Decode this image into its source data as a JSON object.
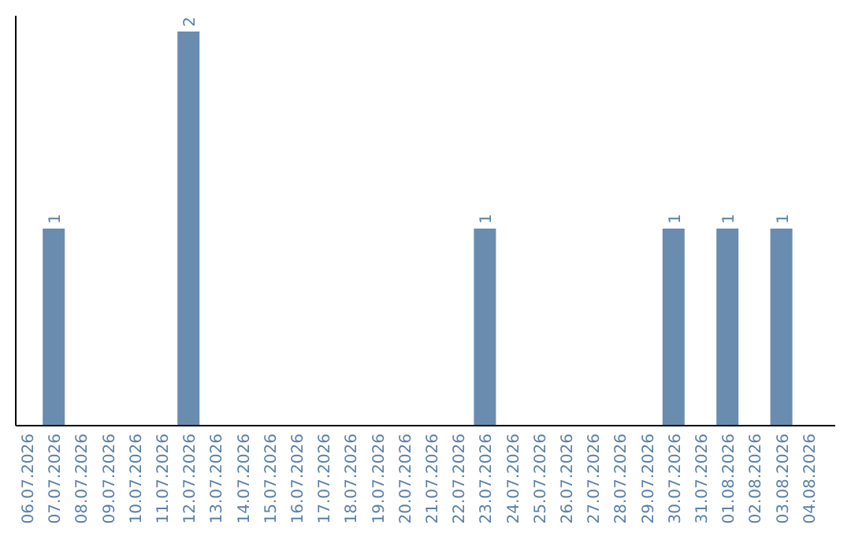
{
  "chart_data": {
    "type": "bar",
    "categories": [
      "06.07.2026",
      "07.07.2026",
      "08.07.2026",
      "09.07.2026",
      "10.07.2026",
      "11.07.2026",
      "12.07.2026",
      "13.07.2026",
      "14.07.2026",
      "15.07.2026",
      "16.07.2026",
      "17.07.2026",
      "18.07.2026",
      "19.07.2026",
      "20.07.2026",
      "21.07.2026",
      "22.07.2026",
      "23.07.2026",
      "24.07.2026",
      "25.07.2026",
      "26.07.2026",
      "27.07.2026",
      "28.07.2026",
      "29.07.2026",
      "30.07.2026",
      "31.07.2026",
      "01.08.2026",
      "02.08.2026",
      "03.08.2026",
      "04.08.2026"
    ],
    "values": [
      0,
      1,
      0,
      0,
      0,
      0,
      2,
      0,
      0,
      0,
      0,
      0,
      0,
      0,
      0,
      0,
      0,
      1,
      0,
      0,
      0,
      0,
      0,
      0,
      1,
      0,
      1,
      0,
      1,
      0
    ],
    "value_labels": [
      null,
      "1",
      null,
      null,
      null,
      null,
      "2",
      null,
      null,
      null,
      null,
      null,
      null,
      null,
      null,
      null,
      null,
      "1",
      null,
      null,
      null,
      null,
      null,
      null,
      "1",
      null,
      "1",
      null,
      "1",
      null
    ],
    "color": "#6a8caf",
    "ylim": [
      0,
      2.08
    ],
    "tick_labels": "x"
  }
}
